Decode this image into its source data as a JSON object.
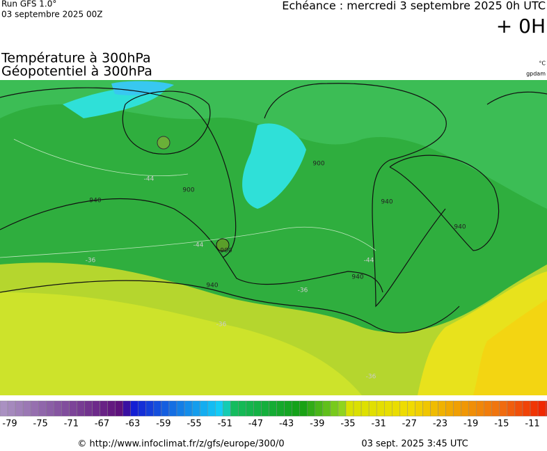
{
  "header": {
    "run": "Run GFS 1.0°",
    "run_date": "03 septembre 2025 00Z",
    "echeance": "Echéance : mercredi 3 septembre 2025 0h UTC",
    "offset": "+ 0H"
  },
  "titles": {
    "temperature": "Température à 300hPa",
    "geopotential": "Géopotentiel à 300hPa",
    "temp_unit": "°C",
    "geo_unit": "gpdam"
  },
  "map": {
    "contour_labels": [
      "940",
      "900",
      "900",
      "940",
      "940",
      "940",
      "940",
      "900",
      "-44",
      "-44",
      "-36",
      "-36",
      "-36",
      "-44",
      "-36"
    ]
  },
  "colorbar": {
    "ticks": [
      -79,
      -75,
      -71,
      -67,
      -63,
      -59,
      -55,
      -51,
      -47,
      -43,
      -39,
      -35,
      -31,
      -27,
      -23,
      -19,
      -15,
      -11
    ]
  },
  "footer": {
    "url": "© http://www.infoclimat.fr/z/gfs/europe/300/0",
    "timestamp": "03 sept. 2025  3:45 UTC"
  }
}
